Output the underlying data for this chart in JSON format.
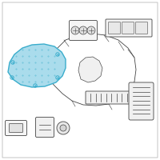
{
  "background_color": "#ffffff",
  "border_color": "#bbbbbb",
  "highlight_color": "#3aadcc",
  "highlight_fill": "#aadcec",
  "line_color": "#444444",
  "line_width": 0.6,
  "fig_width": 2.0,
  "fig_height": 2.0,
  "dpi": 100
}
